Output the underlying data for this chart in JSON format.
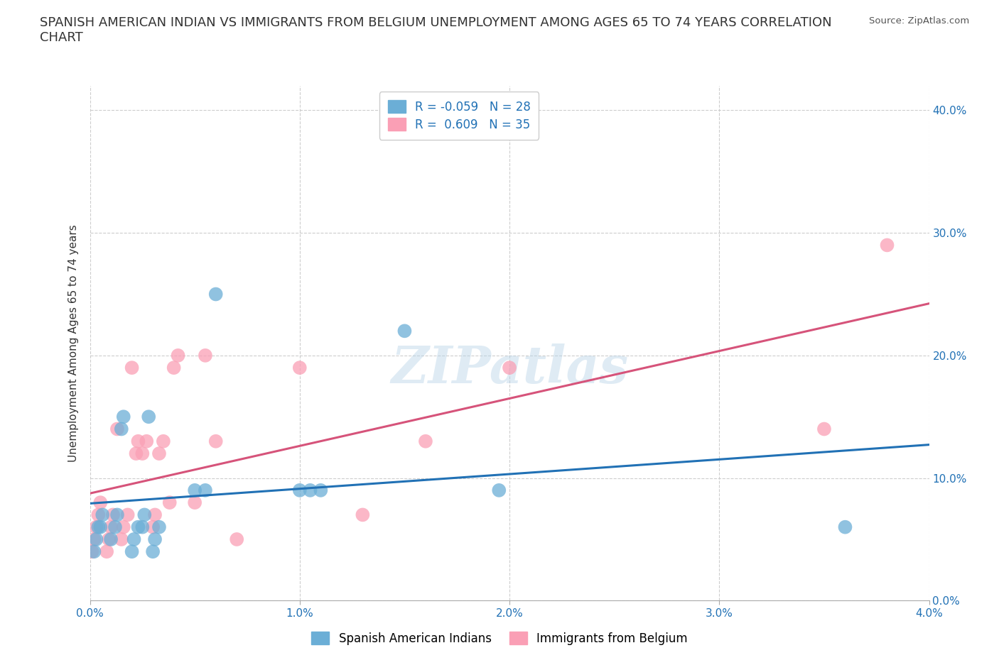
{
  "title": "SPANISH AMERICAN INDIAN VS IMMIGRANTS FROM BELGIUM UNEMPLOYMENT AMONG AGES 65 TO 74 YEARS CORRELATION\nCHART",
  "source": "Source: ZipAtlas.com",
  "ylabel": "Unemployment Among Ages 65 to 74 years",
  "xlim": [
    0.0,
    0.04
  ],
  "ylim": [
    0.0,
    0.42
  ],
  "xticks": [
    0.0,
    0.01,
    0.02,
    0.03,
    0.04
  ],
  "yticks": [
    0.0,
    0.1,
    0.2,
    0.3,
    0.4
  ],
  "xtick_labels": [
    "0.0%",
    "1.0%",
    "2.0%",
    "3.0%",
    "4.0%"
  ],
  "ytick_labels": [
    "0.0%",
    "10.0%",
    "20.0%",
    "30.0%",
    "40.0%"
  ],
  "color_blue": "#6baed6",
  "color_pink": "#fa9fb5",
  "line_blue": "#2171b5",
  "line_pink": "#d6537a",
  "R_blue": -0.059,
  "N_blue": 28,
  "R_pink": 0.609,
  "N_pink": 35,
  "legend_label_blue": "Spanish American Indians",
  "legend_label_pink": "Immigrants from Belgium",
  "watermark": "ZIPatlas",
  "blue_x": [
    0.0002,
    0.0003,
    0.0004,
    0.0005,
    0.0006,
    0.001,
    0.0012,
    0.0013,
    0.0015,
    0.0016,
    0.002,
    0.0021,
    0.0023,
    0.0025,
    0.0026,
    0.0028,
    0.003,
    0.0031,
    0.0033,
    0.005,
    0.0055,
    0.006,
    0.01,
    0.0105,
    0.011,
    0.015,
    0.0195,
    0.036
  ],
  "blue_y": [
    0.04,
    0.05,
    0.06,
    0.06,
    0.07,
    0.05,
    0.06,
    0.07,
    0.14,
    0.15,
    0.04,
    0.05,
    0.06,
    0.06,
    0.07,
    0.15,
    0.04,
    0.05,
    0.06,
    0.09,
    0.09,
    0.25,
    0.09,
    0.09,
    0.09,
    0.22,
    0.09,
    0.06
  ],
  "pink_x": [
    0.0001,
    0.0002,
    0.0003,
    0.0004,
    0.0005,
    0.0008,
    0.0009,
    0.001,
    0.0011,
    0.0013,
    0.0015,
    0.0016,
    0.0018,
    0.002,
    0.0022,
    0.0023,
    0.0025,
    0.0027,
    0.003,
    0.0031,
    0.0033,
    0.0035,
    0.0038,
    0.004,
    0.0042,
    0.005,
    0.0055,
    0.006,
    0.007,
    0.01,
    0.013,
    0.016,
    0.02,
    0.035,
    0.038
  ],
  "pink_y": [
    0.04,
    0.05,
    0.06,
    0.07,
    0.08,
    0.04,
    0.05,
    0.06,
    0.07,
    0.14,
    0.05,
    0.06,
    0.07,
    0.19,
    0.12,
    0.13,
    0.12,
    0.13,
    0.06,
    0.07,
    0.12,
    0.13,
    0.08,
    0.19,
    0.2,
    0.08,
    0.2,
    0.13,
    0.05,
    0.19,
    0.07,
    0.13,
    0.19,
    0.14,
    0.29
  ],
  "figsize": [
    14.06,
    9.3
  ],
  "dpi": 100,
  "bg_color": "#ffffff",
  "grid_color": "#c8c8c8",
  "title_fontsize": 13,
  "axis_label_fontsize": 11,
  "tick_fontsize": 11,
  "legend_fontsize": 12
}
